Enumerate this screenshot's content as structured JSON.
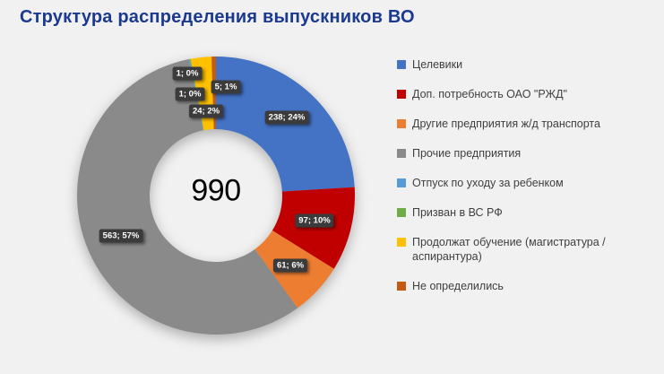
{
  "title": "Структура распределения выпускников ВО",
  "colors": {
    "background": "#F1F1F2",
    "title": "#1B3A8F",
    "data_label_box": "#3B3B3B",
    "data_label_text": "#FFFFFF",
    "legend_text": "#3F3F3F"
  },
  "chart_data": {
    "type": "pie",
    "subtype": "donut",
    "title": "Структура распределения выпускников ВО",
    "total": 990,
    "center_label": "990",
    "legend_position": "right",
    "categories": [
      "Целевики",
      "Доп. потребность ОАО \"РЖД\"",
      "Другие предприятия ж/д транспорта",
      "Прочие предприятия",
      "Отпуск по уходу за ребенком",
      "Призван в ВС РФ",
      "Продолжат обучение (магистратура / аспирантура)",
      "Не определились"
    ],
    "values": [
      238,
      97,
      61,
      563,
      1,
      1,
      24,
      5
    ],
    "percents": [
      "24%",
      "10%",
      "6%",
      "57%",
      "0%",
      "0%",
      "2%",
      "1%"
    ],
    "slices": [
      {
        "name": "Целевики",
        "value": 238,
        "pct": "24%",
        "label": "238; 24%",
        "color": "#4472C4"
      },
      {
        "name": "Доп. потребность ОАО \"РЖД\"",
        "value": 97,
        "pct": "10%",
        "label": "97; 10%",
        "color": "#C00000"
      },
      {
        "name": "Другие предприятия ж/д транспорта",
        "value": 61,
        "pct": "6%",
        "label": "61; 6%",
        "color": "#ED7D31"
      },
      {
        "name": "Прочие предприятия",
        "value": 563,
        "pct": "57%",
        "label": "563; 57%",
        "color": "#8A8A8A"
      },
      {
        "name": "Отпуск по уходу за ребенком",
        "value": 1,
        "pct": "0%",
        "label": "1; 0%",
        "color": "#5B9BD5"
      },
      {
        "name": "Призван в ВС РФ",
        "value": 1,
        "pct": "0%",
        "label": "1; 0%",
        "color": "#70AD47"
      },
      {
        "name": "Продолжат обучение (магистратура / аспирантура)",
        "value": 24,
        "pct": "2%",
        "label": "24; 2%",
        "color": "#FFC000"
      },
      {
        "name": "Не определились",
        "value": 5,
        "pct": "1%",
        "label": "5; 1%",
        "color": "#C55A11"
      }
    ]
  }
}
